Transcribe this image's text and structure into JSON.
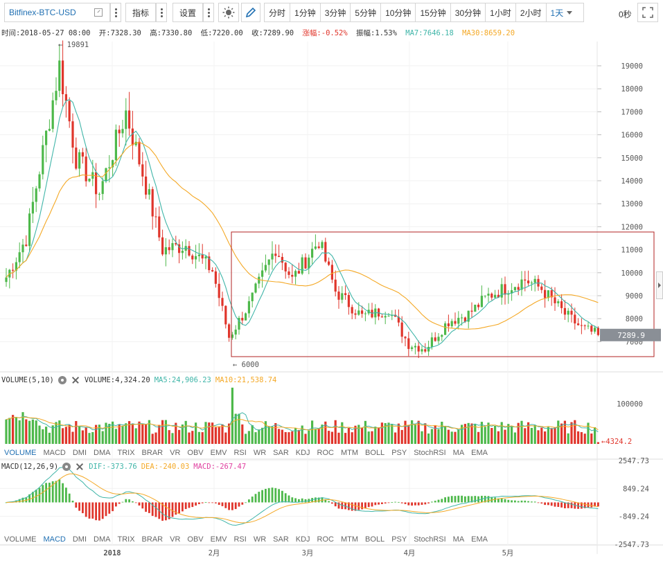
{
  "toolbar": {
    "symbol": "Bitfinex-BTC-USD",
    "indicators_label": "指标",
    "settings_label": "设置",
    "periods": [
      "分时",
      "1分钟",
      "3分钟",
      "5分钟",
      "10分钟",
      "15分钟",
      "30分钟",
      "1小时",
      "2小时",
      "1天"
    ],
    "active_period": "1天",
    "timer": "0秒"
  },
  "info": {
    "time": "时间:2018-05-27 08:00",
    "open": "开:7328.30",
    "high": "高:7330.80",
    "low": "低:7220.00",
    "close": "收:7289.90",
    "change": "涨幅:-0.52%",
    "amplitude": "振幅:1.53%",
    "ma7": "MA7:7646.18",
    "ma30": "MA30:8659.20"
  },
  "volume_pane": {
    "title": "VOLUME(5,10)",
    "volume": "VOLUME:4,324.20",
    "ma5": "MA5:24,906.23",
    "ma10": "MA10:21,538.74",
    "last_label": "4324.2",
    "tick_label": "100000"
  },
  "macd_pane": {
    "title": "MACD(12,26,9)",
    "dif": "DIF:-373.76",
    "dea": "DEA:-240.03",
    "macd": "MACD:-267.47",
    "ticks": [
      "2547.73",
      "849.24",
      "-849.24",
      "-2547.73"
    ]
  },
  "indicator_tabs": [
    "VOLUME",
    "MACD",
    "DMI",
    "DMA",
    "TRIX",
    "BRAR",
    "VR",
    "OBV",
    "EMV",
    "RSI",
    "WR",
    "SAR",
    "KDJ",
    "ROC",
    "MTM",
    "BOLL",
    "PSY",
    "StochRSI",
    "MA",
    "EMA"
  ],
  "indicator_tabs_active_1": "VOLUME",
  "indicator_tabs_active_2": "MACD",
  "price_axis": [
    "19000",
    "18000",
    "17000",
    "16000",
    "15000",
    "14000",
    "13000",
    "12000",
    "11000",
    "10000",
    "9000",
    "8000",
    "7000"
  ],
  "last_price_label": "7289.9",
  "high_marker": "19891",
  "low_marker": "6000",
  "time_axis": [
    "2018",
    "2月",
    "3月",
    "4月",
    "5月"
  ],
  "colors": {
    "up": "#4db84a",
    "down": "#e0352b",
    "ma7": "#3fb5a8",
    "ma30": "#f4a825",
    "dif": "#3fb5a8",
    "dea": "#f4a825",
    "macd": "#e040a0",
    "box": "#b22222"
  },
  "chart_data": {
    "type": "candlestick",
    "title": "",
    "xlabel": "",
    "ylabel": "",
    "ylim": [
      6000,
      20000
    ],
    "series_close_approx": {
      "name": "",
      "dates": [
        "2017-12-01",
        "2017-12-07",
        "2017-12-17",
        "2017-12-22",
        "2017-12-29",
        "2018-01-06",
        "2018-01-12",
        "2018-01-17",
        "2018-01-24",
        "2018-02-01",
        "2018-02-06",
        "2018-02-12",
        "2018-02-20",
        "2018-02-25",
        "2018-03-05",
        "2018-03-10",
        "2018-03-18",
        "2018-03-26",
        "2018-04-01",
        "2018-04-06",
        "2018-04-12",
        "2018-04-18",
        "2018-04-24",
        "2018-05-05",
        "2018-05-10",
        "2018-05-17",
        "2018-05-22",
        "2018-05-27"
      ],
      "values": [
        9800,
        11500,
        19000,
        15000,
        13500,
        17000,
        13800,
        11000,
        11200,
        10100,
        7200,
        8600,
        11100,
        9700,
        11400,
        9200,
        8100,
        8400,
        6900,
        6700,
        7900,
        8200,
        9000,
        9700,
        9300,
        8200,
        7600,
        7290
      ]
    },
    "ma_lines": [
      "MA7",
      "MA30"
    ],
    "volume_last": 4324.2,
    "volume_ma5": 24906.23,
    "volume_ma10": 21538.74,
    "macd_dif_last": -373.76,
    "macd_dea_last": -240.03,
    "macd_hist_last": -267.47,
    "grid": true
  }
}
